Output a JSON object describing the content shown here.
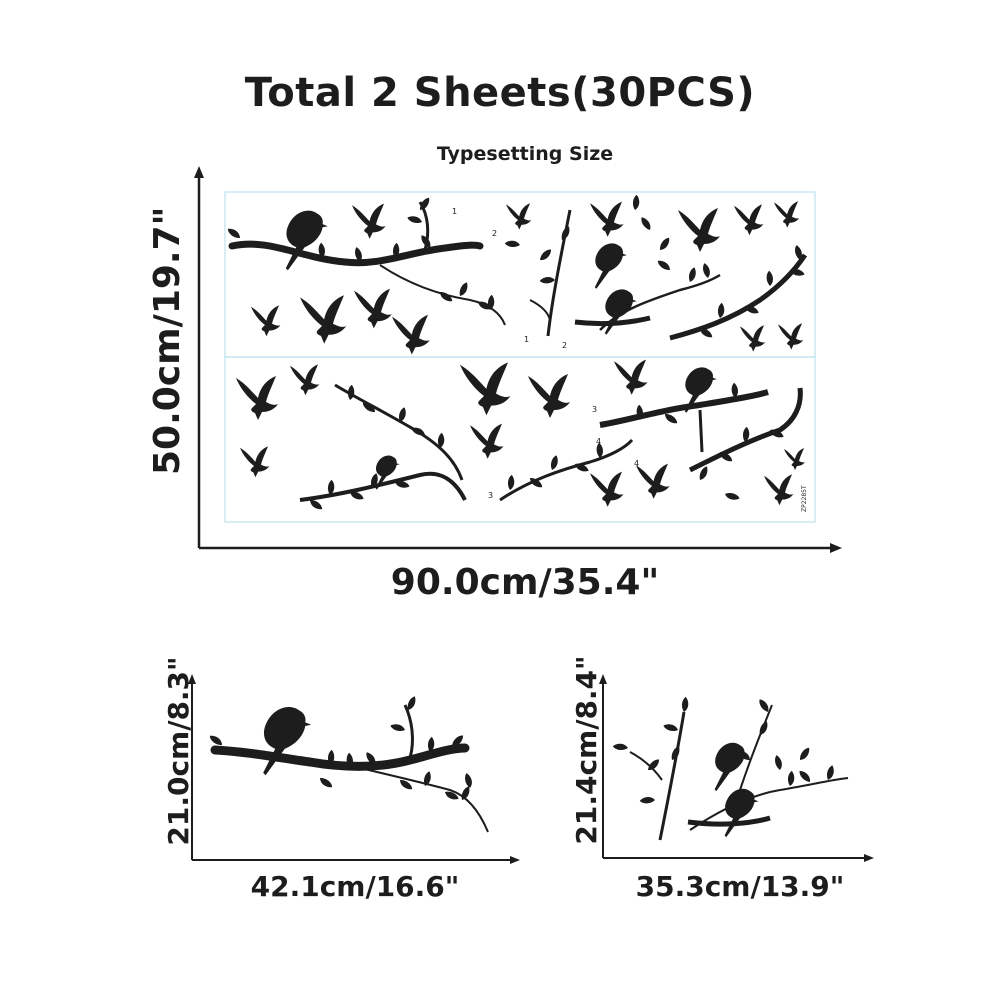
{
  "title": "Total 2 Sheets(30PCS)",
  "subtitle": "Typesetting Size",
  "main_layout": {
    "height_label": "50.0cm/19.7\"",
    "width_label": "90.0cm/35.4\"",
    "sheet_code": "ZP2285T",
    "sheet_numbers": [
      "1",
      "2",
      "1",
      "2",
      "3",
      "4",
      "3",
      "4"
    ]
  },
  "piece_one": {
    "height_label": "21.0cm/8.3\"",
    "width_label": "42.1cm/16.6\""
  },
  "piece_two": {
    "height_label": "21.4cm/8.4\"",
    "width_label": "35.3cm/13.9\""
  },
  "colors": {
    "ink": "#1d1d1d",
    "sheet_border": "#bfe3ee",
    "background": "#ffffff"
  }
}
